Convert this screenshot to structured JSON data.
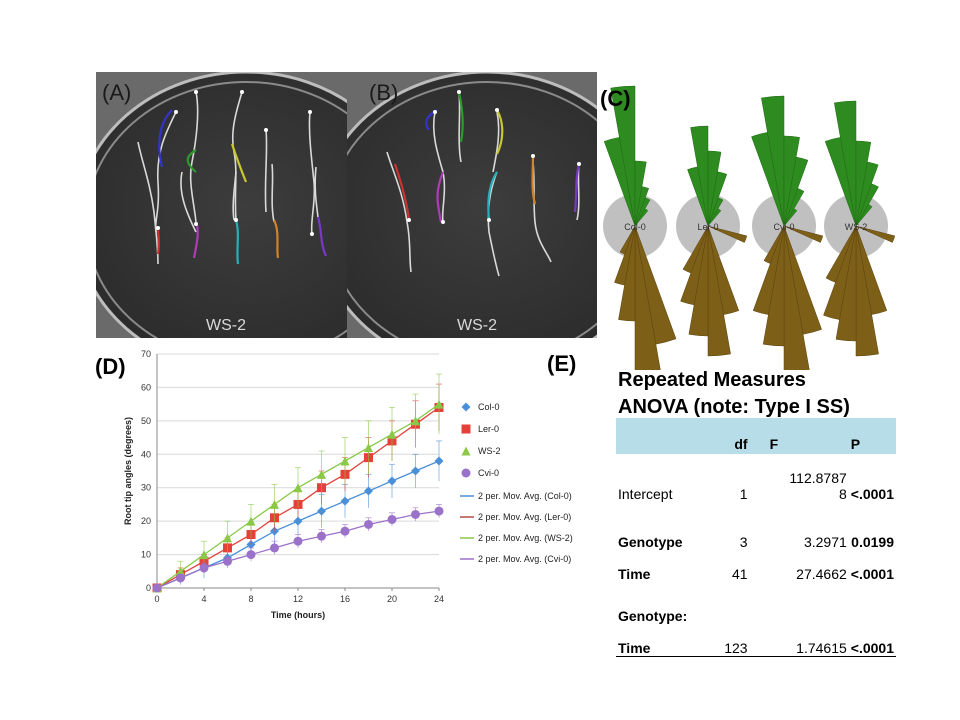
{
  "panels": {
    "a": {
      "label": "(A)",
      "plate_text": "WS-2"
    },
    "b": {
      "label": "(B)",
      "plate_text": "WS-2"
    },
    "c": {
      "label": "(C)",
      "genotypes": [
        "Col-0",
        "Ler-0",
        "Cvi-0",
        "WS-2"
      ]
    },
    "d": {
      "label": "(D)"
    },
    "e": {
      "label": "(E)"
    }
  },
  "colors": {
    "rose_up": "#2e8b1f",
    "rose_down": "#7d5f17",
    "rose_circle": "#c0c0c0",
    "table_header": "#b7dde8"
  },
  "chart_data": {
    "type": "line",
    "xlabel": "Time (hours)",
    "ylabel": "Root tip angles (degrees)",
    "xlim": [
      0,
      24
    ],
    "ylim": [
      0,
      70
    ],
    "xticks": [
      0,
      4,
      8,
      12,
      16,
      20,
      24
    ],
    "yticks": [
      0,
      10,
      20,
      30,
      40,
      50,
      60,
      70
    ],
    "grid": true,
    "legend_position": "right",
    "series": [
      {
        "name": "Col-0",
        "color": "#4a90d9",
        "marker": "diamond",
        "x": [
          0,
          2,
          4,
          6,
          8,
          10,
          12,
          14,
          16,
          18,
          20,
          22,
          24
        ],
        "y": [
          0,
          3,
          6,
          9,
          13,
          17,
          20,
          23,
          26,
          29,
          32,
          35,
          38
        ],
        "err": [
          1,
          2,
          3,
          3,
          4,
          4,
          4,
          5,
          5,
          5,
          5,
          5,
          6
        ]
      },
      {
        "name": "Ler-0",
        "color": "#e5403a",
        "marker": "square",
        "x": [
          0,
          2,
          4,
          6,
          8,
          10,
          12,
          14,
          16,
          18,
          20,
          22,
          24
        ],
        "y": [
          0,
          4,
          8,
          12,
          16,
          21,
          25,
          30,
          34,
          39,
          44,
          49,
          54
        ],
        "err": [
          1,
          2,
          2,
          3,
          3,
          4,
          4,
          5,
          5,
          6,
          6,
          7,
          7
        ]
      },
      {
        "name": "WS-2",
        "color": "#8ac847",
        "marker": "triangle",
        "x": [
          0,
          2,
          4,
          6,
          8,
          10,
          12,
          14,
          16,
          18,
          20,
          22,
          24
        ],
        "y": [
          0,
          5,
          10,
          15,
          20,
          25,
          30,
          34,
          38,
          42,
          46,
          50,
          55
        ],
        "err": [
          1,
          3,
          4,
          5,
          5,
          6,
          6,
          7,
          7,
          8,
          8,
          8,
          9
        ]
      },
      {
        "name": "Cvi-0",
        "color": "#9b72c9",
        "marker": "circle",
        "x": [
          0,
          2,
          4,
          6,
          8,
          10,
          12,
          14,
          16,
          18,
          20,
          22,
          24
        ],
        "y": [
          0,
          3,
          6,
          8,
          10,
          12,
          14,
          15.5,
          17,
          19,
          20.5,
          22,
          23
        ],
        "err": [
          1,
          1,
          1.5,
          1.5,
          2,
          2,
          2,
          2,
          2,
          2,
          2,
          2,
          2
        ]
      }
    ],
    "trendlines": [
      {
        "name": "2 per. Mov. Avg. (Col-0)",
        "color": "#4a90d9"
      },
      {
        "name": "2 per. Mov. Avg. (Ler-0)",
        "color": "#b54a48"
      },
      {
        "name": "2 per. Mov. Avg. (WS-2)",
        "color": "#8ac847"
      },
      {
        "name": "2 per. Mov. Avg. (Cvi-0)",
        "color": "#9b72c9"
      }
    ]
  },
  "anova": {
    "title_line1": "Repeated Measures",
    "title_line2": "ANOVA (note: Type I SS)",
    "headers": {
      "df": "df",
      "f": "F",
      "p": "P"
    },
    "rows": [
      {
        "label": "Intercept",
        "df": "1",
        "f_top": "112.8787",
        "f": "8",
        "p": "<.0001"
      },
      {
        "label": "Genotype",
        "df": "3",
        "f": "3.2971",
        "p": "0.0199"
      },
      {
        "label": "Time",
        "df": "41",
        "f": "27.4662",
        "p": "<.0001"
      },
      {
        "label": "Genotype:",
        "label2": "Time",
        "df": "123",
        "f": "1.74615",
        "p": "<.0001"
      }
    ]
  }
}
